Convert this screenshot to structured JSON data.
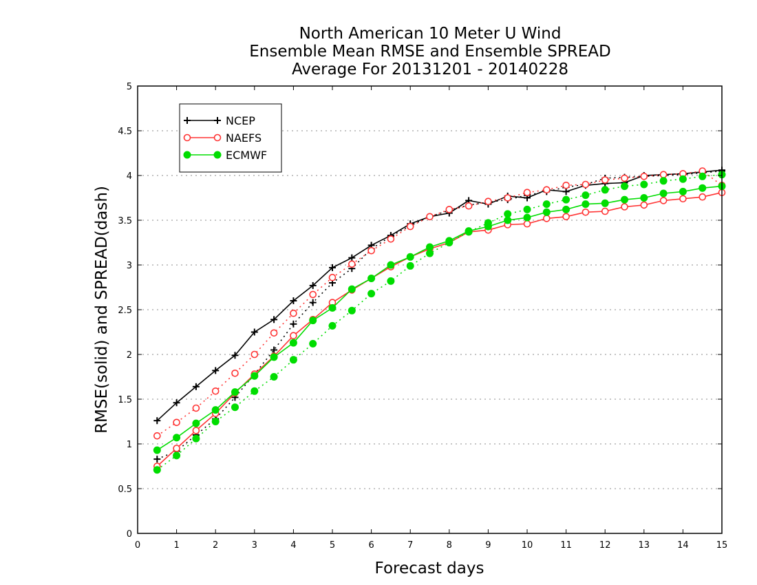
{
  "chart_data": {
    "type": "line",
    "title": [
      "North American 10 Meter U Wind",
      "Ensemble Mean RMSE and Ensemble SPREAD",
      "Average For 20131201 - 20140228"
    ],
    "xlabel": "Forecast days",
    "ylabel": "RMSE(solid) and SPREAD(dash)",
    "xlim": [
      0,
      15
    ],
    "ylim": [
      0,
      5
    ],
    "xticks": [
      "0",
      "1",
      "2",
      "3",
      "4",
      "5",
      "6",
      "7",
      "8",
      "9",
      "10",
      "11",
      "12",
      "13",
      "14",
      "15"
    ],
    "yticks": [
      "0",
      "0.5",
      "1",
      "1.5",
      "2",
      "2.5",
      "3",
      "3.5",
      "4",
      "4.5",
      "5"
    ],
    "grid": true,
    "legend_position": "top-left",
    "x": [
      0.5,
      1,
      1.5,
      2,
      2.5,
      3,
      3.5,
      4,
      4.5,
      5,
      5.5,
      6,
      6.5,
      7,
      7.5,
      8,
      8.5,
      9,
      9.5,
      10,
      10.5,
      11,
      11.5,
      12,
      12.5,
      13,
      13.5,
      14,
      14.5,
      15
    ],
    "series": [
      {
        "name": "NCEP",
        "kind": "rmse",
        "style": "solid",
        "color": "#000000",
        "marker": "plus",
        "values": [
          1.26,
          1.46,
          1.64,
          1.82,
          1.99,
          2.25,
          2.39,
          2.6,
          2.77,
          2.97,
          3.08,
          3.22,
          3.33,
          3.46,
          3.54,
          3.58,
          3.72,
          3.68,
          3.77,
          3.75,
          3.84,
          3.82,
          3.89,
          3.91,
          3.92,
          4.0,
          4.01,
          4.02,
          4.04,
          4.06
        ]
      },
      {
        "name": "NCEP",
        "kind": "spread",
        "style": "dash",
        "color": "#000000",
        "marker": "plus",
        "values": [
          0.83,
          0.92,
          1.1,
          1.28,
          1.52,
          1.78,
          2.05,
          2.34,
          2.58,
          2.8,
          2.96,
          3.18,
          3.32,
          3.44,
          3.54,
          3.61,
          3.67,
          3.7,
          3.73,
          3.78,
          3.82,
          3.87,
          3.9,
          3.97,
          3.98,
          3.99,
          4.0,
          4.01,
          4.03,
          4.05
        ]
      },
      {
        "name": "NAEFS",
        "kind": "rmse",
        "style": "solid",
        "color": "#ff3333",
        "marker": "circle-open",
        "values": [
          0.75,
          0.95,
          1.15,
          1.34,
          1.57,
          1.78,
          1.98,
          2.21,
          2.39,
          2.58,
          2.72,
          2.85,
          2.98,
          3.09,
          3.18,
          3.25,
          3.37,
          3.39,
          3.45,
          3.46,
          3.52,
          3.54,
          3.59,
          3.6,
          3.65,
          3.67,
          3.72,
          3.74,
          3.76,
          3.81
        ]
      },
      {
        "name": "NAEFS",
        "kind": "spread",
        "style": "dash",
        "color": "#ff3333",
        "marker": "circle-open",
        "values": [
          1.09,
          1.24,
          1.4,
          1.59,
          1.79,
          2.0,
          2.24,
          2.46,
          2.67,
          2.86,
          3.01,
          3.16,
          3.29,
          3.43,
          3.54,
          3.62,
          3.66,
          3.71,
          3.75,
          3.81,
          3.84,
          3.89,
          3.9,
          3.95,
          3.97,
          3.99,
          4.01,
          4.02,
          4.05,
          3.89
        ]
      },
      {
        "name": "ECMWF",
        "kind": "rmse",
        "style": "solid",
        "color": "#00dd00",
        "marker": "circle-filled",
        "values": [
          0.93,
          1.07,
          1.23,
          1.38,
          1.58,
          1.76,
          1.97,
          2.13,
          2.38,
          2.52,
          2.73,
          2.85,
          3.0,
          3.09,
          3.2,
          3.27,
          3.38,
          3.43,
          3.5,
          3.53,
          3.59,
          3.62,
          3.68,
          3.69,
          3.73,
          3.75,
          3.8,
          3.82,
          3.86,
          3.88
        ]
      },
      {
        "name": "ECMWF",
        "kind": "spread",
        "style": "dash",
        "color": "#00dd00",
        "marker": "circle-filled",
        "values": [
          0.71,
          0.87,
          1.06,
          1.25,
          1.41,
          1.59,
          1.75,
          1.94,
          2.12,
          2.32,
          2.49,
          2.68,
          2.82,
          2.99,
          3.13,
          3.25,
          3.37,
          3.47,
          3.57,
          3.62,
          3.68,
          3.73,
          3.78,
          3.84,
          3.88,
          3.9,
          3.94,
          3.96,
          3.99,
          4.01
        ]
      }
    ],
    "legend": [
      {
        "label": "NCEP",
        "color": "#000000",
        "marker": "plus"
      },
      {
        "label": "NAEFS",
        "color": "#ff3333",
        "marker": "circle-open"
      },
      {
        "label": "ECMWF",
        "color": "#00dd00",
        "marker": "circle-filled"
      }
    ]
  }
}
